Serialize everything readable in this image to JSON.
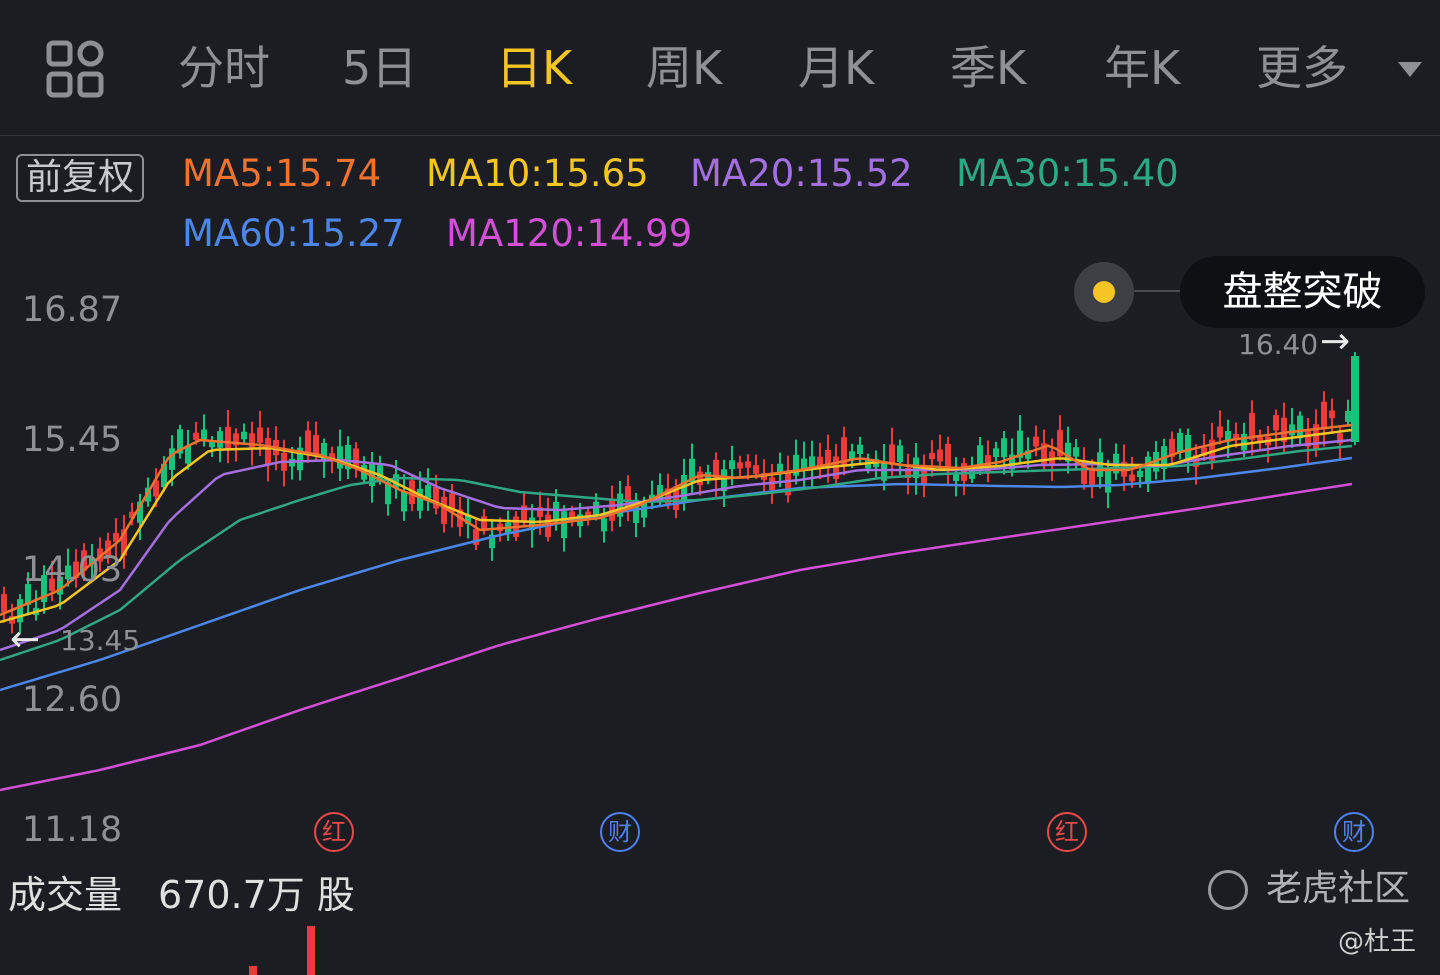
{
  "tabs": {
    "menu_icon": "grid-icon",
    "items": [
      {
        "label": "分时"
      },
      {
        "label": "5日"
      },
      {
        "label": "日K"
      },
      {
        "label": "周K"
      },
      {
        "label": "月K"
      },
      {
        "label": "季K"
      },
      {
        "label": "年K"
      },
      {
        "label": "更多"
      }
    ],
    "active_index": 2,
    "more_icon": "caret-down-icon"
  },
  "adjust_label": "前复权",
  "moving_averages": [
    {
      "label": "MA5:15.74",
      "color": "#f0722f"
    },
    {
      "label": "MA10:15.65",
      "color": "#f5c623"
    },
    {
      "label": "MA20:15.52",
      "color": "#a46fe0"
    },
    {
      "label": "MA30:15.40",
      "color": "#2fa784"
    },
    {
      "label": "MA60:15.27",
      "color": "#4b86e8"
    },
    {
      "label": "MA120:14.99",
      "color": "#d34fd8"
    }
  ],
  "chart": {
    "y_ticks": [
      "16.87",
      "15.45",
      "14.03",
      "12.60",
      "11.18"
    ],
    "high_label": "16.40",
    "low_label": "13.45",
    "signal": {
      "label": "盘整突破",
      "dot_color": "#f5c623"
    },
    "events": [
      {
        "label": "红",
        "kind": "red"
      },
      {
        "label": "财",
        "kind": "blue"
      },
      {
        "label": "红",
        "kind": "red"
      },
      {
        "label": "财",
        "kind": "blue"
      }
    ],
    "colors": {
      "up": "#ed3b3b",
      "down": "#19c27a"
    }
  },
  "volume": {
    "title": "成交量",
    "value": "670.7万 股"
  },
  "watermark": {
    "icon": "tiger-logo-icon",
    "text": "老虎社区"
  },
  "credit": "@杜王"
}
